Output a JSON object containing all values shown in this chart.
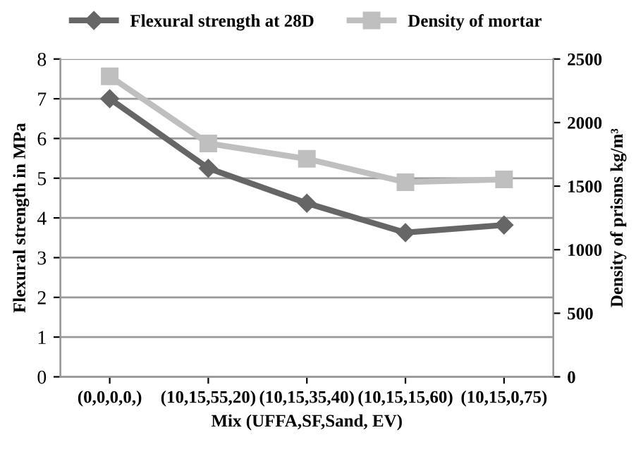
{
  "chart_data": {
    "type": "line",
    "xlabel": "Mix (UFFA,SF,Sand, EV)",
    "ylabel": "Flexural strength in MPa",
    "y2label": "Density of prisms kg/m³",
    "categories": [
      "(0,0,0,0,)",
      "(10,15,55,20)",
      "(10,15,35,40)",
      "(10,15,15,60)",
      "(10,15,0,75)"
    ],
    "series": [
      {
        "name": "Flexural strength at 28D",
        "color": "#666666",
        "marker": "diamond",
        "values": [
          7.0,
          5.25,
          4.37,
          3.63,
          3.82
        ]
      },
      {
        "name": "Density of mortar",
        "color": "#bfbfbf",
        "marker": "square",
        "axis": "y2",
        "values": [
          2364,
          1836,
          1715,
          1531,
          1553
        ]
      }
    ],
    "ylim": [
      0,
      8
    ],
    "yticks": [
      0,
      1,
      2,
      3,
      4,
      5,
      6,
      7,
      8
    ],
    "y2lim": [
      0,
      2500
    ],
    "y2ticks": [
      0,
      500,
      1000,
      1500,
      2000,
      2500
    ],
    "grid": "y",
    "legend": "top"
  }
}
